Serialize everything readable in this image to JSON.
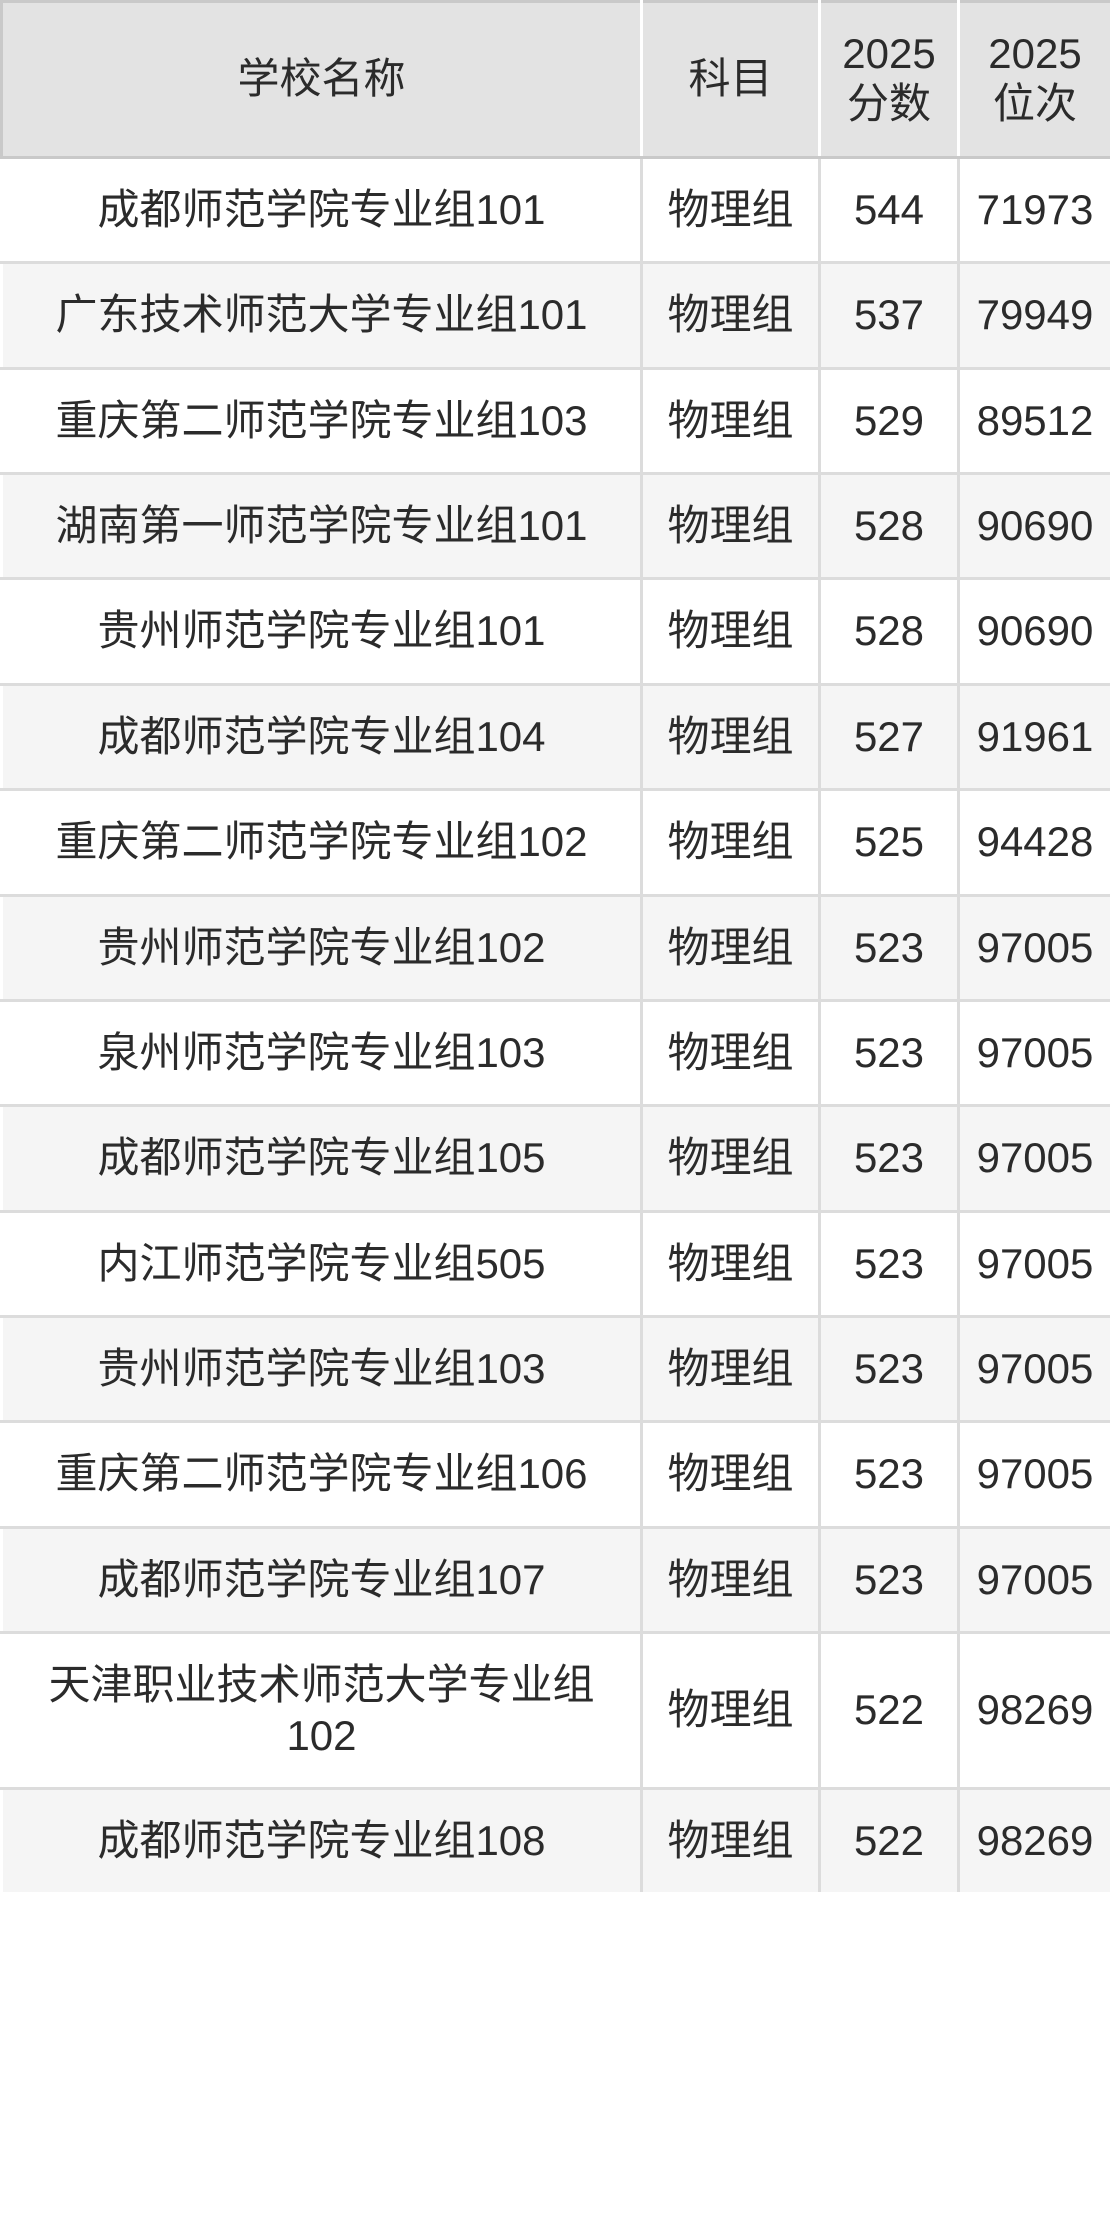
{
  "colors": {
    "header_bg": "#e3e3e3",
    "row_alt_bg": "#f5f5f5",
    "body_border": "#dcdcdc",
    "header_border": "#c9c9c9",
    "text": "#2b2b2b"
  },
  "chart_data": {
    "type": "table",
    "columns": [
      "学校名称",
      "科目",
      "2025分数",
      "2025位次"
    ],
    "rows": [
      [
        "成都师范学院专业组101",
        "物理组",
        544,
        71973
      ],
      [
        "广东技术师范大学专业组101",
        "物理组",
        537,
        79949
      ],
      [
        "重庆第二师范学院专业组103",
        "物理组",
        529,
        89512
      ],
      [
        "湖南第一师范学院专业组101",
        "物理组",
        528,
        90690
      ],
      [
        "贵州师范学院专业组101",
        "物理组",
        528,
        90690
      ],
      [
        "成都师范学院专业组104",
        "物理组",
        527,
        91961
      ],
      [
        "重庆第二师范学院专业组102",
        "物理组",
        525,
        94428
      ],
      [
        "贵州师范学院专业组102",
        "物理组",
        523,
        97005
      ],
      [
        "泉州师范学院专业组103",
        "物理组",
        523,
        97005
      ],
      [
        "成都师范学院专业组105",
        "物理组",
        523,
        97005
      ],
      [
        "内江师范学院专业组505",
        "物理组",
        523,
        97005
      ],
      [
        "贵州师范学院专业组103",
        "物理组",
        523,
        97005
      ],
      [
        "重庆第二师范学院专业组106",
        "物理组",
        523,
        97005
      ],
      [
        "成都师范学院专业组107",
        "物理组",
        523,
        97005
      ],
      [
        "天津职业技术师范大学专业组102",
        "物理组",
        522,
        98269
      ],
      [
        "成都师范学院专业组108",
        "物理组",
        522,
        98269
      ]
    ]
  }
}
